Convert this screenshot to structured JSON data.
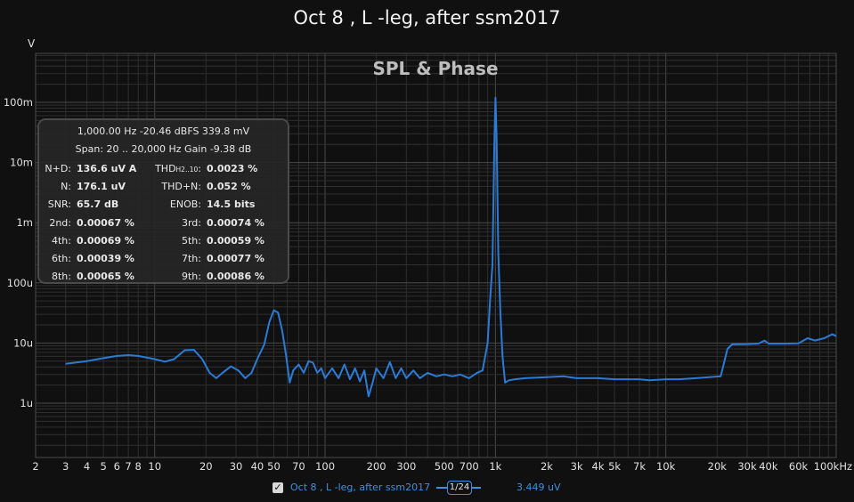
{
  "window_title": "Oct 8 , L -leg, after ssm2017",
  "plot_heading": "SPL & Phase",
  "stats": {
    "line1": "1,000.00 Hz  -20.46 dBFS  339.8 mV",
    "line2": "Span: 20 .. 20,000 Hz   Gain -9.38 dB",
    "rows": [
      {
        "l1": "N+D:",
        "v1": "136.6 uV A",
        "l2": "THD",
        "l2sub": "H2..10",
        "l2end": ":",
        "v2": "0.0023 %"
      },
      {
        "l1": "N:",
        "v1": "176.1 uV",
        "l2": "THD+N:",
        "l2sub": "",
        "l2end": "",
        "v2": "0.052 %"
      },
      {
        "l1": "SNR:",
        "v1": "65.7 dB",
        "l2": "ENOB:",
        "l2sub": "",
        "l2end": "",
        "v2": "14.5 bits"
      },
      {
        "l1": "2nd:",
        "v1": "0.00067 %",
        "l2": "3rd:",
        "l2sub": "",
        "l2end": "",
        "v2": "0.00074 %"
      },
      {
        "l1": "4th:",
        "v1": "0.00069 %",
        "l2": "5th:",
        "l2sub": "",
        "l2end": "",
        "v2": "0.00059 %"
      },
      {
        "l1": "6th:",
        "v1": "0.00039 %",
        "l2": "7th:",
        "l2sub": "",
        "l2end": "",
        "v2": "0.00077 %"
      },
      {
        "l1": "8th:",
        "v1": "0.00065 %",
        "l2": "9th:",
        "l2sub": "",
        "l2end": "",
        "v2": "0.00086 %"
      }
    ]
  },
  "legend": {
    "checkbox": "✓",
    "series_name": "Oct 8 , L -leg, after ssm2017",
    "smoothing": "1/24",
    "cursor_value": "3.449 uV"
  },
  "colors": {
    "trace": "#2b7bd6",
    "background": "#101010",
    "grid_major": "#4a4a4a",
    "grid_minor": "#2e2e2e",
    "legend_text": "#3f8fe0"
  },
  "chart_data": {
    "type": "line",
    "x_scale": "log",
    "y_scale": "log",
    "xlim": [
      2,
      100000
    ],
    "ylim": [
      1e-07,
      1
    ],
    "y_unit": "V",
    "grid": true,
    "x_ticks": [
      {
        "v": 2,
        "label": "2"
      },
      {
        "v": 3,
        "label": "3"
      },
      {
        "v": 4,
        "label": "4"
      },
      {
        "v": 5,
        "label": "5"
      },
      {
        "v": 6,
        "label": "6"
      },
      {
        "v": 7,
        "label": "7"
      },
      {
        "v": 8,
        "label": "8"
      },
      {
        "v": 10,
        "label": "10"
      },
      {
        "v": 20,
        "label": "20"
      },
      {
        "v": 30,
        "label": "30"
      },
      {
        "v": 40,
        "label": "40"
      },
      {
        "v": 50,
        "label": "50"
      },
      {
        "v": 70,
        "label": "70"
      },
      {
        "v": 100,
        "label": "100"
      },
      {
        "v": 200,
        "label": "200"
      },
      {
        "v": 300,
        "label": "300"
      },
      {
        "v": 500,
        "label": "500"
      },
      {
        "v": 700,
        "label": "700"
      },
      {
        "v": 1000,
        "label": "1k"
      },
      {
        "v": 2000,
        "label": "2k"
      },
      {
        "v": 3000,
        "label": "3k"
      },
      {
        "v": 4000,
        "label": "4k"
      },
      {
        "v": 5000,
        "label": "5k"
      },
      {
        "v": 7000,
        "label": "7k"
      },
      {
        "v": 10000,
        "label": "10k"
      },
      {
        "v": 20000,
        "label": "20k"
      },
      {
        "v": 30000,
        "label": "30k"
      },
      {
        "v": 40000,
        "label": "40k"
      },
      {
        "v": 60000,
        "label": "60k"
      },
      {
        "v": 100000,
        "label": "100kHz"
      }
    ],
    "y_ticks": [
      {
        "v": 0.1,
        "label": "100m"
      },
      {
        "v": 0.01,
        "label": "10m"
      },
      {
        "v": 0.001,
        "label": "1m"
      },
      {
        "v": 0.0001,
        "label": "100u"
      },
      {
        "v": 1e-05,
        "label": "10u"
      },
      {
        "v": 1e-06,
        "label": "1u"
      }
    ],
    "series": [
      {
        "name": "Oct 8 , L -leg, after ssm2017",
        "points": [
          [
            3,
            4.5e-06
          ],
          [
            4,
            5e-06
          ],
          [
            5,
            5.6e-06
          ],
          [
            6,
            6.1e-06
          ],
          [
            7,
            6.3e-06
          ],
          [
            8,
            6.1e-06
          ],
          [
            10,
            5.4e-06
          ],
          [
            11.5,
            4.9e-06
          ],
          [
            13,
            5.4e-06
          ],
          [
            15,
            7.6e-06
          ],
          [
            17,
            7.7e-06
          ],
          [
            19,
            5.4e-06
          ],
          [
            21,
            3.2e-06
          ],
          [
            23,
            2.6e-06
          ],
          [
            25,
            3.2e-06
          ],
          [
            28,
            4.1e-06
          ],
          [
            31,
            3.5e-06
          ],
          [
            34,
            2.6e-06
          ],
          [
            37,
            3.2e-06
          ],
          [
            40,
            5.4e-06
          ],
          [
            44,
            9.5e-06
          ],
          [
            47,
            2.2e-05
          ],
          [
            50,
            3.5e-05
          ],
          [
            53,
            3.2e-05
          ],
          [
            56,
            1.6e-05
          ],
          [
            59,
            6.3e-06
          ],
          [
            62,
            2.2e-06
          ],
          [
            65,
            3.5e-06
          ],
          [
            70,
            4.4e-06
          ],
          [
            75,
            3.2e-06
          ],
          [
            80,
            5e-06
          ],
          [
            85,
            4.7e-06
          ],
          [
            90,
            3.2e-06
          ],
          [
            95,
            3.8e-06
          ],
          [
            100,
            2.6e-06
          ],
          [
            110,
            3.8e-06
          ],
          [
            120,
            2.6e-06
          ],
          [
            130,
            4.4e-06
          ],
          [
            140,
            2.5e-06
          ],
          [
            150,
            3.8e-06
          ],
          [
            160,
            2.3e-06
          ],
          [
            170,
            3.5e-06
          ],
          [
            180,
            1.3e-06
          ],
          [
            190,
            2.2e-06
          ],
          [
            200,
            3.8e-06
          ],
          [
            220,
            2.6e-06
          ],
          [
            240,
            4.8e-06
          ],
          [
            260,
            2.6e-06
          ],
          [
            280,
            3.8e-06
          ],
          [
            300,
            2.6e-06
          ],
          [
            330,
            3.5e-06
          ],
          [
            360,
            2.6e-06
          ],
          [
            400,
            3.2e-06
          ],
          [
            450,
            2.8e-06
          ],
          [
            500,
            3e-06
          ],
          [
            560,
            2.8e-06
          ],
          [
            620,
            3e-06
          ],
          [
            700,
            2.6e-06
          ],
          [
            780,
            3.2e-06
          ],
          [
            840,
            3.5e-06
          ],
          [
            900,
            1e-05
          ],
          [
            930,
            5e-05
          ],
          [
            960,
            0.0002
          ],
          [
            985,
            0.02
          ],
          [
            1000,
            0.12
          ],
          [
            1015,
            0.03
          ],
          [
            1040,
            0.0003
          ],
          [
            1070,
            3e-05
          ],
          [
            1100,
            6e-06
          ],
          [
            1140,
            2.2e-06
          ],
          [
            1200,
            2.4e-06
          ],
          [
            1300,
            2.5e-06
          ],
          [
            1500,
            2.6e-06
          ],
          [
            2000,
            2.7e-06
          ],
          [
            2500,
            2.8e-06
          ],
          [
            3000,
            2.6e-06
          ],
          [
            3500,
            2.6e-06
          ],
          [
            4000,
            2.6e-06
          ],
          [
            5000,
            2.5e-06
          ],
          [
            6000,
            2.5e-06
          ],
          [
            7000,
            2.5e-06
          ],
          [
            8000,
            2.4e-06
          ],
          [
            10000,
            2.5e-06
          ],
          [
            12000,
            2.5e-06
          ],
          [
            15000,
            2.6e-06
          ],
          [
            18000,
            2.7e-06
          ],
          [
            21000,
            2.8e-06
          ],
          [
            23000,
            8e-06
          ],
          [
            24500,
            9.5e-06
          ],
          [
            30000,
            9.6e-06
          ],
          [
            35000,
            9.8e-06
          ],
          [
            38000,
            1.1e-05
          ],
          [
            40000,
            9.8e-06
          ],
          [
            50000,
            9.8e-06
          ],
          [
            60000,
            9.9e-06
          ],
          [
            68000,
            1.2e-05
          ],
          [
            75000,
            1.1e-05
          ],
          [
            85000,
            1.2e-05
          ],
          [
            95000,
            1.4e-05
          ],
          [
            100000,
            1.3e-05
          ]
        ]
      }
    ]
  }
}
